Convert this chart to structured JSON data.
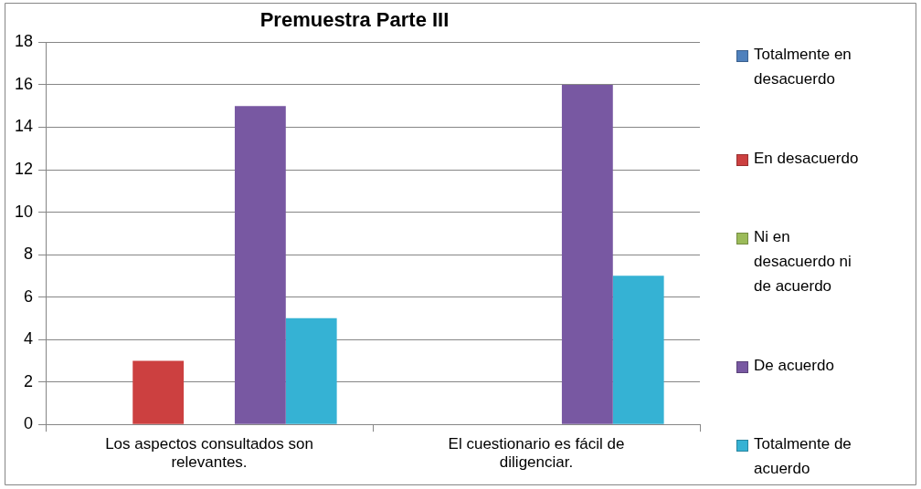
{
  "chart_data": {
    "type": "bar",
    "title": "Premuestra Parte III",
    "categories": [
      "Los aspectos consultados son relevantes.",
      "El cuestionario es fácil de diligenciar."
    ],
    "series": [
      {
        "name": "Totalmente en desacuerdo",
        "color": "#4f81bd",
        "values": [
          0,
          0
        ]
      },
      {
        "name": "En desacuerdo",
        "color": "#cc4040",
        "values": [
          3,
          0
        ]
      },
      {
        "name": "Ni en desacuerdo ni de acuerdo",
        "color": "#9bbb59",
        "values": [
          0,
          0
        ]
      },
      {
        "name": "De acuerdo",
        "color": "#7858a2",
        "values": [
          15,
          16
        ]
      },
      {
        "name": "Totalmente de acuerdo",
        "color": "#35b2d4",
        "values": [
          5,
          7
        ]
      }
    ],
    "ylim": [
      0,
      18
    ],
    "yticks": [
      0,
      2,
      4,
      6,
      8,
      10,
      12,
      14,
      16,
      18
    ],
    "grid": "y",
    "legend": "right"
  }
}
